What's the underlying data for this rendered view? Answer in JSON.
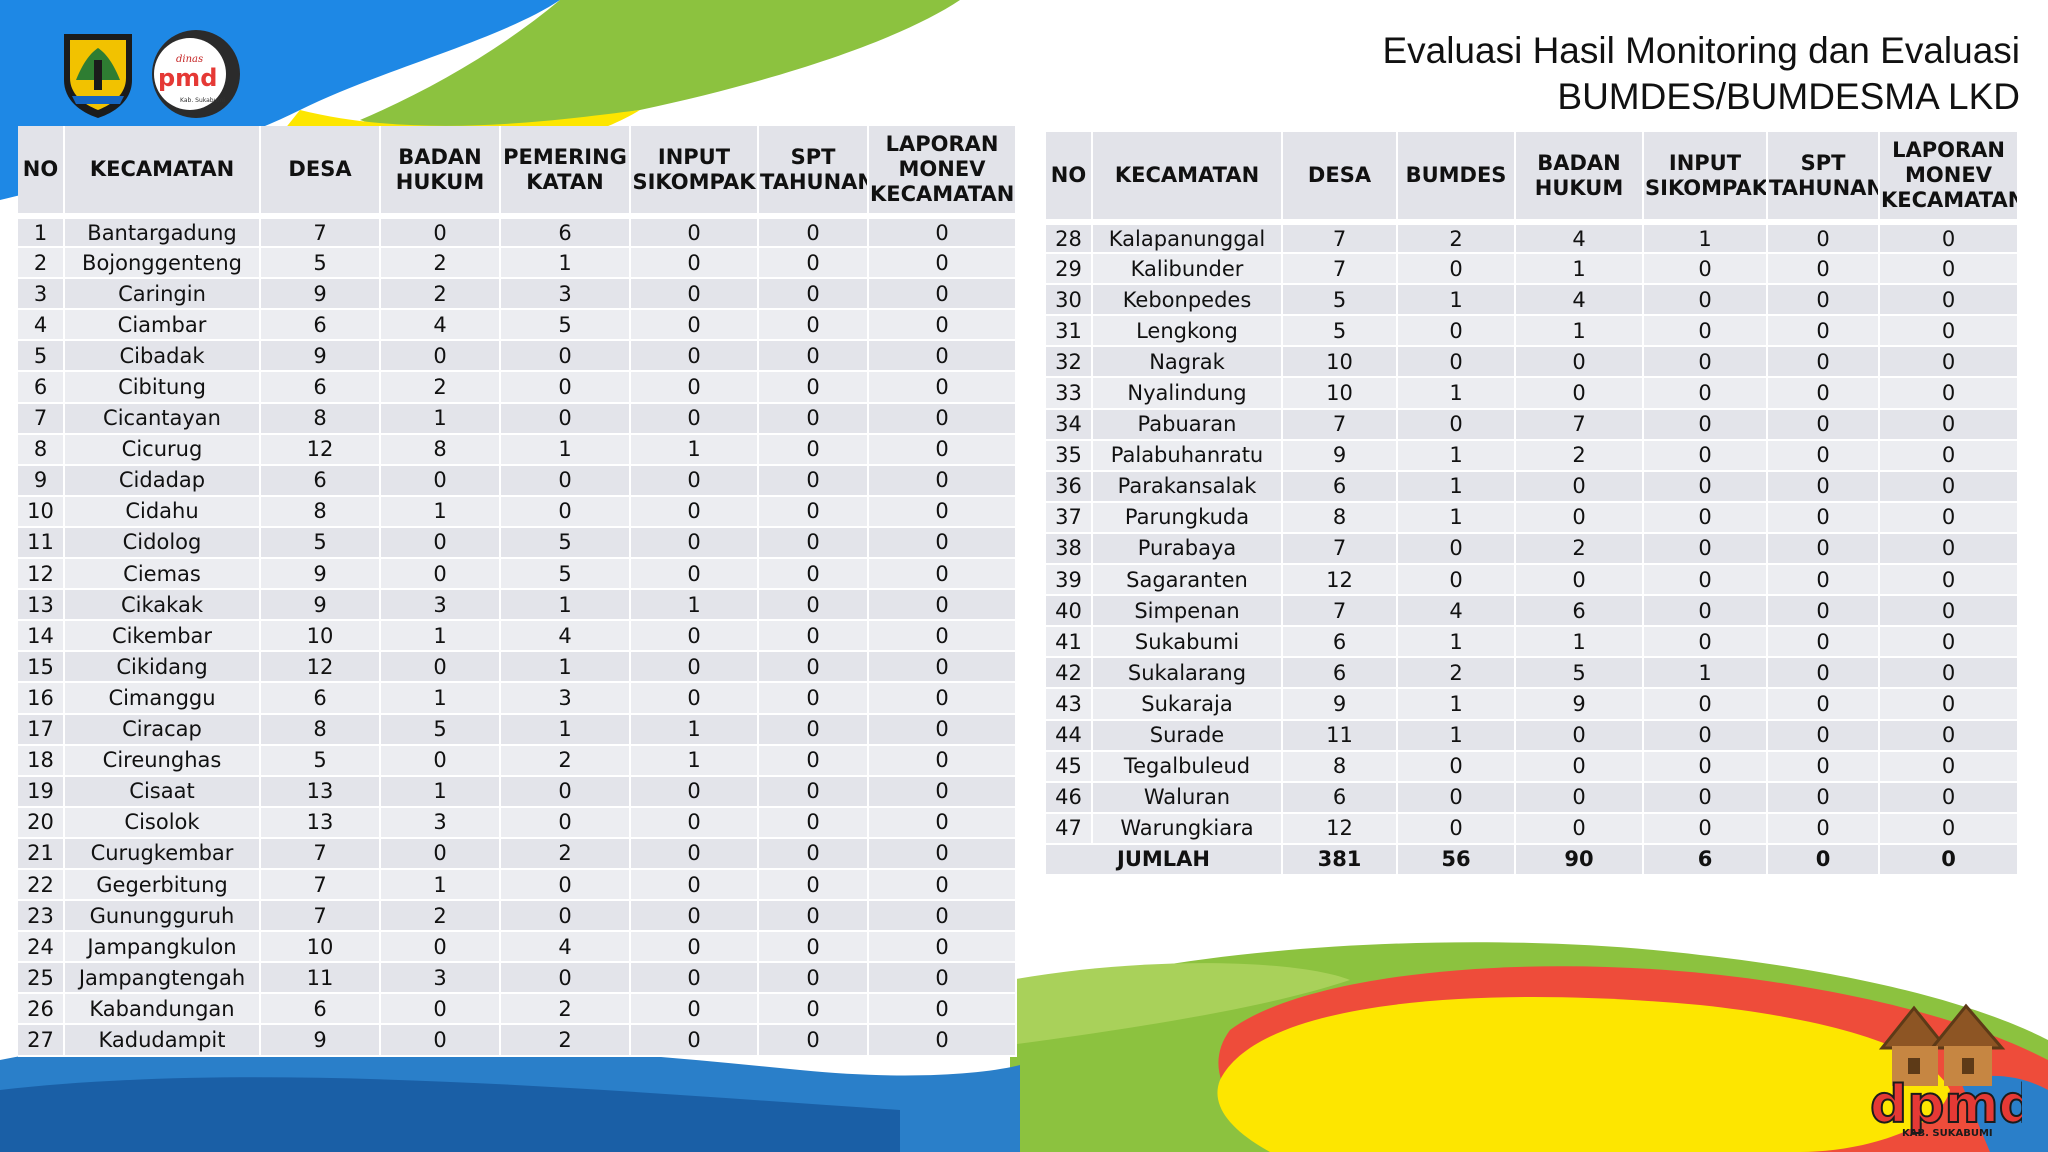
{
  "title": {
    "line1": "Evaluasi Hasil Monitoring dan Evaluasi",
    "line2": "BUMDES/BUMDESMA LKD"
  },
  "logos": {
    "left_emblem": "kabupaten-sukabumi-emblem",
    "dinas_pmd": {
      "top_text": "dinas",
      "main_text": "pmd",
      "sub_text": "Kab. Sukabumi"
    },
    "dpmd_mascot": {
      "main_text": "dpmd",
      "sub_text": "KAB. SUKABUMI"
    }
  },
  "colors": {
    "blue": "#1e88e5",
    "green": "#8cc23f",
    "yellow": "#fde600",
    "red": "#ee4c3a",
    "table_row": "#e3e4ea"
  },
  "left_table": {
    "headers": [
      "NO",
      "KECAMATAN",
      "DESA",
      "BADAN HUKUM",
      "PEMERING KATAN",
      "INPUT SIKOMPAK",
      "SPT TAHUNAN",
      "LAPORAN MONEV KECAMATAN"
    ],
    "rows": [
      [
        "1",
        "Bantargadung",
        "7",
        "0",
        "6",
        "0",
        "0",
        "0"
      ],
      [
        "2",
        "Bojonggenteng",
        "5",
        "2",
        "1",
        "0",
        "0",
        "0"
      ],
      [
        "3",
        "Caringin",
        "9",
        "2",
        "3",
        "0",
        "0",
        "0"
      ],
      [
        "4",
        "Ciambar",
        "6",
        "4",
        "5",
        "0",
        "0",
        "0"
      ],
      [
        "5",
        "Cibadak",
        "9",
        "0",
        "0",
        "0",
        "0",
        "0"
      ],
      [
        "6",
        "Cibitung",
        "6",
        "2",
        "0",
        "0",
        "0",
        "0"
      ],
      [
        "7",
        "Cicantayan",
        "8",
        "1",
        "0",
        "0",
        "0",
        "0"
      ],
      [
        "8",
        "Cicurug",
        "12",
        "8",
        "1",
        "1",
        "0",
        "0"
      ],
      [
        "9",
        "Cidadap",
        "6",
        "0",
        "0",
        "0",
        "0",
        "0"
      ],
      [
        "10",
        "Cidahu",
        "8",
        "1",
        "0",
        "0",
        "0",
        "0"
      ],
      [
        "11",
        "Cidolog",
        "5",
        "0",
        "5",
        "0",
        "0",
        "0"
      ],
      [
        "12",
        "Ciemas",
        "9",
        "0",
        "5",
        "0",
        "0",
        "0"
      ],
      [
        "13",
        "Cikakak",
        "9",
        "3",
        "1",
        "1",
        "0",
        "0"
      ],
      [
        "14",
        "Cikembar",
        "10",
        "1",
        "4",
        "0",
        "0",
        "0"
      ],
      [
        "15",
        "Cikidang",
        "12",
        "0",
        "1",
        "0",
        "0",
        "0"
      ],
      [
        "16",
        "Cimanggu",
        "6",
        "1",
        "3",
        "0",
        "0",
        "0"
      ],
      [
        "17",
        "Ciracap",
        "8",
        "5",
        "1",
        "1",
        "0",
        "0"
      ],
      [
        "18",
        "Cireunghas",
        "5",
        "0",
        "2",
        "1",
        "0",
        "0"
      ],
      [
        "19",
        "Cisaat",
        "13",
        "1",
        "0",
        "0",
        "0",
        "0"
      ],
      [
        "20",
        "Cisolok",
        "13",
        "3",
        "0",
        "0",
        "0",
        "0"
      ],
      [
        "21",
        "Curugkembar",
        "7",
        "0",
        "2",
        "0",
        "0",
        "0"
      ],
      [
        "22",
        "Gegerbitung",
        "7",
        "1",
        "0",
        "0",
        "0",
        "0"
      ],
      [
        "23",
        "Gunungguruh",
        "7",
        "2",
        "0",
        "0",
        "0",
        "0"
      ],
      [
        "24",
        "Jampangkulon",
        "10",
        "0",
        "4",
        "0",
        "0",
        "0"
      ],
      [
        "25",
        "Jampangtengah",
        "11",
        "3",
        "0",
        "0",
        "0",
        "0"
      ],
      [
        "26",
        "Kabandungan",
        "6",
        "0",
        "2",
        "0",
        "0",
        "0"
      ],
      [
        "27",
        "Kadudampit",
        "9",
        "0",
        "2",
        "0",
        "0",
        "0"
      ]
    ]
  },
  "right_table": {
    "headers": [
      "NO",
      "KECAMATAN",
      "DESA",
      "BUMDES",
      "BADAN HUKUM",
      "INPUT SIKOMPAK",
      "SPT TAHUNAN",
      "LAPORAN MONEV KECAMATAN"
    ],
    "rows": [
      [
        "28",
        "Kalapanunggal",
        "7",
        "2",
        "4",
        "1",
        "0",
        "0"
      ],
      [
        "29",
        "Kalibunder",
        "7",
        "0",
        "1",
        "0",
        "0",
        "0"
      ],
      [
        "30",
        "Kebonpedes",
        "5",
        "1",
        "4",
        "0",
        "0",
        "0"
      ],
      [
        "31",
        "Lengkong",
        "5",
        "0",
        "1",
        "0",
        "0",
        "0"
      ],
      [
        "32",
        "Nagrak",
        "10",
        "0",
        "0",
        "0",
        "0",
        "0"
      ],
      [
        "33",
        "Nyalindung",
        "10",
        "1",
        "0",
        "0",
        "0",
        "0"
      ],
      [
        "34",
        "Pabuaran",
        "7",
        "0",
        "7",
        "0",
        "0",
        "0"
      ],
      [
        "35",
        "Palabuhanratu",
        "9",
        "1",
        "2",
        "0",
        "0",
        "0"
      ],
      [
        "36",
        "Parakansalak",
        "6",
        "1",
        "0",
        "0",
        "0",
        "0"
      ],
      [
        "37",
        "Parungkuda",
        "8",
        "1",
        "0",
        "0",
        "0",
        "0"
      ],
      [
        "38",
        "Purabaya",
        "7",
        "0",
        "2",
        "0",
        "0",
        "0"
      ],
      [
        "39",
        "Sagaranten",
        "12",
        "0",
        "0",
        "0",
        "0",
        "0"
      ],
      [
        "40",
        "Simpenan",
        "7",
        "4",
        "6",
        "0",
        "0",
        "0"
      ],
      [
        "41",
        "Sukabumi",
        "6",
        "1",
        "1",
        "0",
        "0",
        "0"
      ],
      [
        "42",
        "Sukalarang",
        "6",
        "2",
        "5",
        "1",
        "0",
        "0"
      ],
      [
        "43",
        "Sukaraja",
        "9",
        "1",
        "9",
        "0",
        "0",
        "0"
      ],
      [
        "44",
        "Surade",
        "11",
        "1",
        "0",
        "0",
        "0",
        "0"
      ],
      [
        "45",
        "Tegalbuleud",
        "8",
        "0",
        "0",
        "0",
        "0",
        "0"
      ],
      [
        "46",
        "Waluran",
        "6",
        "0",
        "0",
        "0",
        "0",
        "0"
      ],
      [
        "47",
        "Warungkiara",
        "12",
        "0",
        "0",
        "0",
        "0",
        "0"
      ]
    ],
    "total": [
      "JUMLAH",
      "381",
      "56",
      "90",
      "6",
      "0",
      "0"
    ]
  }
}
